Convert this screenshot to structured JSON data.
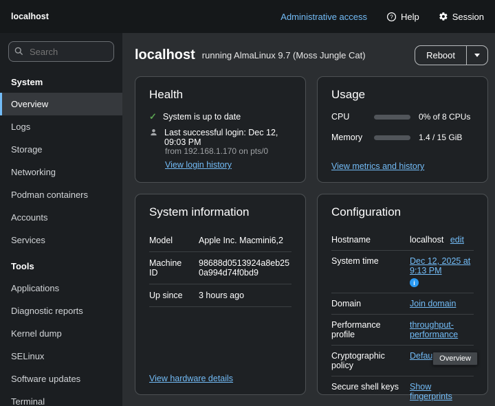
{
  "masthead": {
    "brand": "localhost",
    "admin_access": "Administrative access",
    "help": "Help",
    "session": "Session"
  },
  "sidebar": {
    "search_placeholder": "Search",
    "sections": [
      {
        "label": "System",
        "items": [
          {
            "label": "Overview"
          },
          {
            "label": "Logs"
          },
          {
            "label": "Storage"
          },
          {
            "label": "Networking"
          },
          {
            "label": "Podman containers"
          },
          {
            "label": "Accounts"
          },
          {
            "label": "Services"
          }
        ]
      },
      {
        "label": "Tools",
        "items": [
          {
            "label": "Applications"
          },
          {
            "label": "Diagnostic reports"
          },
          {
            "label": "Kernel dump"
          },
          {
            "label": "SELinux"
          },
          {
            "label": "Software updates"
          },
          {
            "label": "Terminal"
          }
        ]
      }
    ]
  },
  "header": {
    "hostname": "localhost",
    "subtitle": "running AlmaLinux 9.7 (Moss Jungle Cat)",
    "reboot_label": "Reboot"
  },
  "health": {
    "title": "Health",
    "up_to_date": "System is up to date",
    "last_login": "Last successful login: Dec 12, 09:03 PM",
    "login_from": "from 192.168.1.170 on pts/0",
    "login_history_link": "View login history"
  },
  "usage": {
    "title": "Usage",
    "cpu_label": "CPU",
    "cpu_text": "0% of 8 CPUs",
    "cpu_percent": 0,
    "memory_label": "Memory",
    "memory_text": "1.4 / 15 GiB",
    "memory_percent": 9,
    "metrics_link": "View metrics and history"
  },
  "system_info": {
    "title": "System information",
    "rows": [
      {
        "label": "Model",
        "value": "Apple Inc. Macmini6,2"
      },
      {
        "label": "Machine ID",
        "value": "98688d0513924a8eb250a994d74f0bd9"
      },
      {
        "label": "Up since",
        "value": "3 hours ago"
      }
    ],
    "hardware_link": "View hardware details"
  },
  "configuration": {
    "title": "Configuration",
    "hostname_label": "Hostname",
    "hostname_value": "localhost",
    "hostname_edit": "edit",
    "system_time_label": "System time",
    "system_time_link": "Dec 12, 2025 at 9:13 PM",
    "domain_label": "Domain",
    "domain_link": "Join domain",
    "performance_label": "Performance profile",
    "performance_link": "throughput-performance",
    "crypto_label": "Cryptographic policy",
    "crypto_link": "Default",
    "ssh_label": "Secure shell keys",
    "ssh_link": "Show fingerprints",
    "tooltip": "Overview"
  }
}
